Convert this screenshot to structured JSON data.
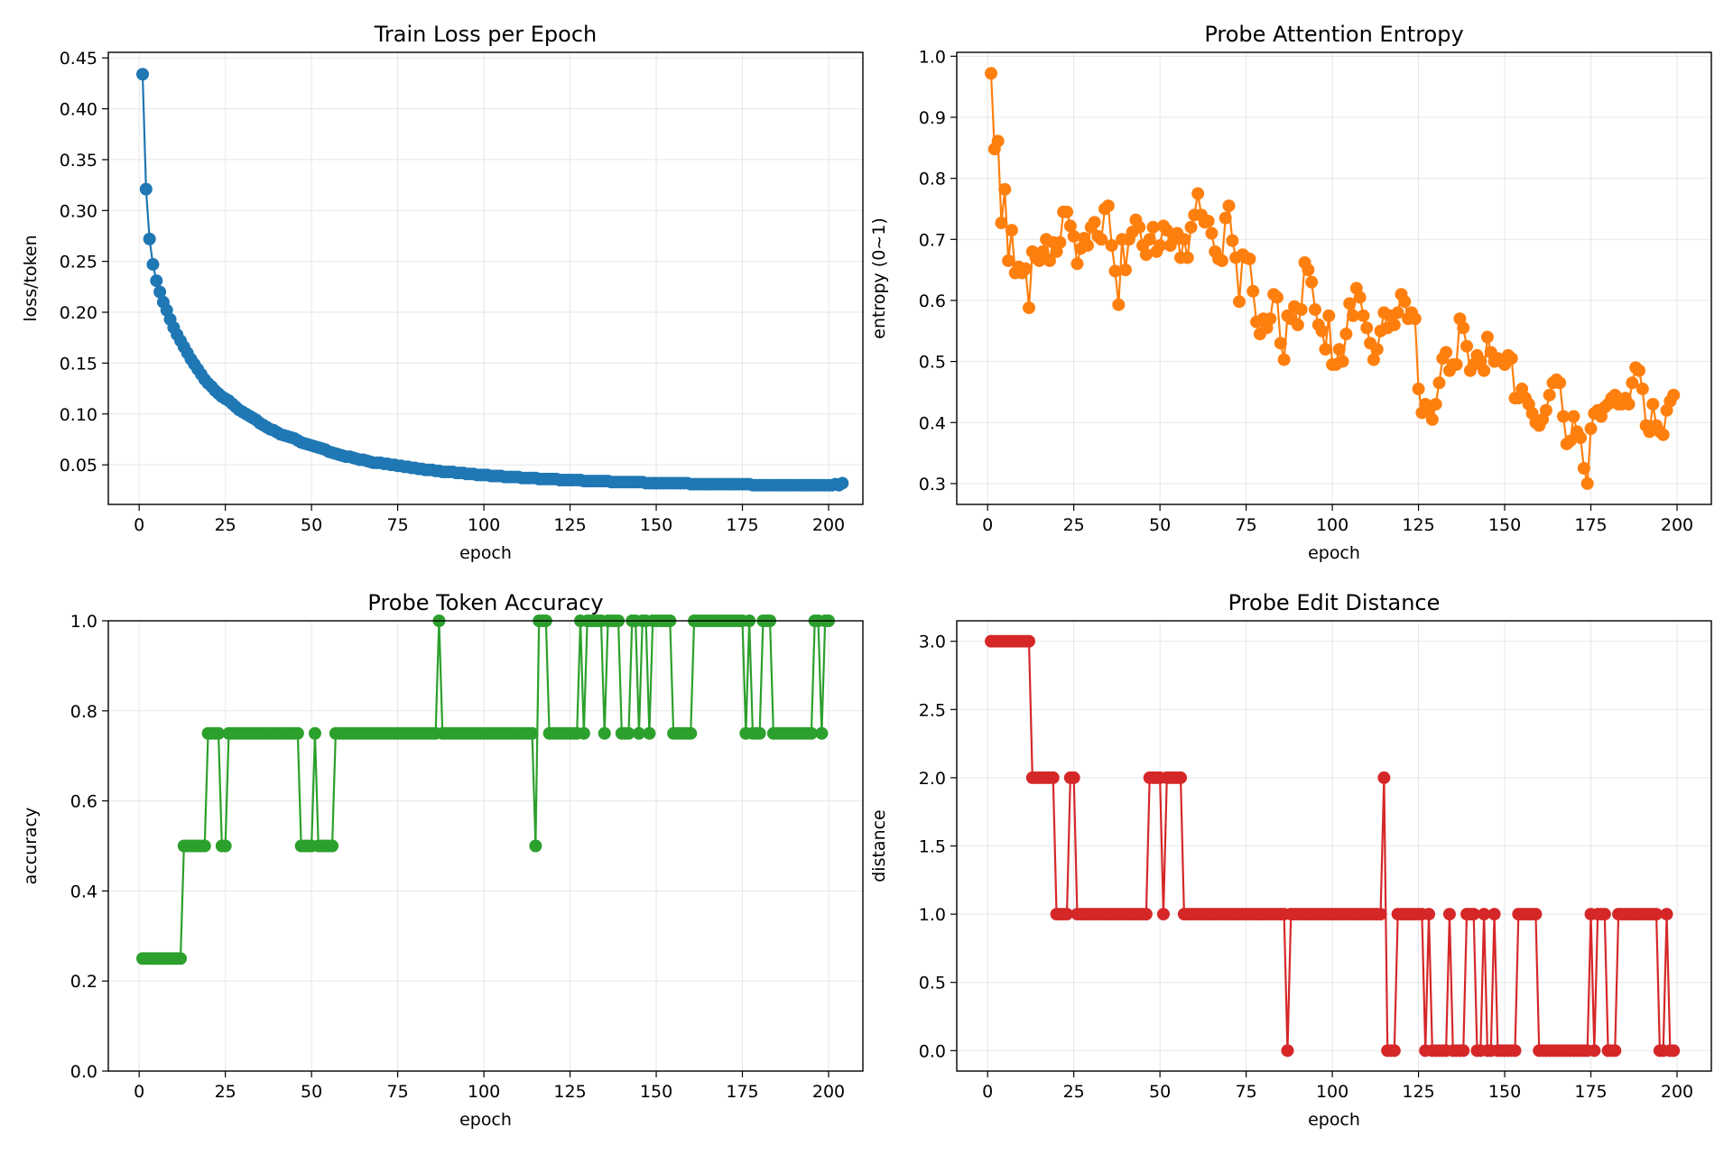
{
  "chart_data": [
    {
      "type": "line",
      "title": "Train Loss per Epoch",
      "xlabel": "epoch",
      "ylabel": "loss/token",
      "xlim": [
        -8.95,
        209.95
      ],
      "ylim": [
        0.0111,
        0.4555
      ],
      "xticks": [
        0,
        25,
        50,
        75,
        100,
        125,
        150,
        175,
        200
      ],
      "xtick_labels": [
        "0",
        "25",
        "50",
        "75",
        "100",
        "125",
        "150",
        "175",
        "200"
      ],
      "yticks": [
        0.05,
        0.1,
        0.15,
        0.2,
        0.25,
        0.3,
        0.35,
        0.4,
        0.45
      ],
      "ytick_labels": [
        "0.05",
        "0.10",
        "0.15",
        "0.20",
        "0.25",
        "0.30",
        "0.35",
        "0.40",
        "0.45"
      ],
      "grid": true,
      "color": "#1f77b4",
      "marker": "circle",
      "x_start": 1,
      "x_step": 1,
      "values": [
        0.434,
        0.321,
        0.272,
        0.247,
        0.231,
        0.22,
        0.21,
        0.202,
        0.193,
        0.185,
        0.178,
        0.172,
        0.166,
        0.16,
        0.154,
        0.149,
        0.144,
        0.139,
        0.134,
        0.13,
        0.127,
        0.123,
        0.12,
        0.117,
        0.115,
        0.113,
        0.11,
        0.107,
        0.104,
        0.102,
        0.1,
        0.098,
        0.096,
        0.094,
        0.091,
        0.089,
        0.087,
        0.085,
        0.084,
        0.082,
        0.08,
        0.079,
        0.078,
        0.077,
        0.076,
        0.074,
        0.072,
        0.071,
        0.07,
        0.069,
        0.068,
        0.067,
        0.066,
        0.065,
        0.063,
        0.062,
        0.061,
        0.06,
        0.059,
        0.058,
        0.058,
        0.057,
        0.056,
        0.055,
        0.055,
        0.054,
        0.053,
        0.052,
        0.052,
        0.052,
        0.051,
        0.051,
        0.05,
        0.05,
        0.049,
        0.049,
        0.048,
        0.048,
        0.047,
        0.047,
        0.046,
        0.046,
        0.045,
        0.045,
        0.045,
        0.044,
        0.044,
        0.043,
        0.043,
        0.043,
        0.043,
        0.042,
        0.042,
        0.042,
        0.041,
        0.041,
        0.041,
        0.04,
        0.04,
        0.04,
        0.04,
        0.039,
        0.039,
        0.039,
        0.039,
        0.038,
        0.038,
        0.038,
        0.038,
        0.038,
        0.037,
        0.037,
        0.037,
        0.037,
        0.037,
        0.036,
        0.036,
        0.036,
        0.036,
        0.036,
        0.036,
        0.035,
        0.035,
        0.035,
        0.035,
        0.035,
        0.035,
        0.035,
        0.034,
        0.034,
        0.034,
        0.034,
        0.034,
        0.034,
        0.034,
        0.034,
        0.033,
        0.033,
        0.033,
        0.033,
        0.033,
        0.033,
        0.033,
        0.033,
        0.033,
        0.033,
        0.032,
        0.032,
        0.032,
        0.032,
        0.032,
        0.032,
        0.032,
        0.032,
        0.032,
        0.032,
        0.032,
        0.032,
        0.032,
        0.031,
        0.031,
        0.031,
        0.031,
        0.031,
        0.031,
        0.031,
        0.031,
        0.031,
        0.031,
        0.031,
        0.031,
        0.031,
        0.031,
        0.031,
        0.031,
        0.031,
        0.031,
        0.03,
        0.03,
        0.03,
        0.03,
        0.03,
        0.03,
        0.03,
        0.03,
        0.03,
        0.03,
        0.03,
        0.03,
        0.03,
        0.03,
        0.03,
        0.03,
        0.03,
        0.03,
        0.03,
        0.03,
        0.03,
        0.03,
        0.03,
        0.03,
        0.031,
        0.03,
        0.032
      ]
    },
    {
      "type": "line",
      "title": "Probe Attention Entropy",
      "xlabel": "epoch",
      "ylabel": "entropy (0~1)",
      "xlim": [
        -8.95,
        209.95
      ],
      "ylim": [
        0.2659,
        1.0064
      ],
      "xticks": [
        0,
        25,
        50,
        75,
        100,
        125,
        150,
        175,
        200
      ],
      "xtick_labels": [
        "0",
        "25",
        "50",
        "75",
        "100",
        "125",
        "150",
        "175",
        "200"
      ],
      "yticks": [
        0.3,
        0.4,
        0.5,
        0.6,
        0.7,
        0.8,
        0.9,
        1.0
      ],
      "ytick_labels": [
        "0.3",
        "0.4",
        "0.5",
        "0.6",
        "0.7",
        "0.8",
        "0.9",
        "1.0"
      ],
      "grid": true,
      "color": "#ff7f0e",
      "marker": "circle",
      "x_start": 1,
      "x_step": 1,
      "values": [
        0.972,
        0.848,
        0.861,
        0.727,
        0.782,
        0.665,
        0.715,
        0.645,
        0.655,
        0.645,
        0.652,
        0.588,
        0.68,
        0.67,
        0.665,
        0.68,
        0.7,
        0.665,
        0.695,
        0.68,
        0.695,
        0.745,
        0.745,
        0.722,
        0.705,
        0.66,
        0.685,
        0.702,
        0.69,
        0.72,
        0.728,
        0.705,
        0.7,
        0.75,
        0.755,
        0.69,
        0.648,
        0.593,
        0.7,
        0.65,
        0.7,
        0.712,
        0.732,
        0.72,
        0.69,
        0.675,
        0.7,
        0.72,
        0.68,
        0.69,
        0.722,
        0.715,
        0.69,
        0.7,
        0.71,
        0.67,
        0.7,
        0.67,
        0.72,
        0.74,
        0.775,
        0.74,
        0.728,
        0.73,
        0.71,
        0.68,
        0.668,
        0.665,
        0.735,
        0.755,
        0.698,
        0.67,
        0.598,
        0.675,
        0.67,
        0.668,
        0.615,
        0.565,
        0.545,
        0.57,
        0.555,
        0.57,
        0.61,
        0.605,
        0.53,
        0.503,
        0.575,
        0.57,
        0.59,
        0.56,
        0.585,
        0.662,
        0.65,
        0.63,
        0.585,
        0.56,
        0.55,
        0.52,
        0.575,
        0.495,
        0.495,
        0.52,
        0.5,
        0.545,
        0.595,
        0.575,
        0.62,
        0.605,
        0.575,
        0.555,
        0.53,
        0.503,
        0.52,
        0.55,
        0.58,
        0.555,
        0.575,
        0.56,
        0.58,
        0.61,
        0.598,
        0.57,
        0.58,
        0.57,
        0.455,
        0.416,
        0.43,
        0.42,
        0.405,
        0.43,
        0.465,
        0.505,
        0.515,
        0.485,
        0.495,
        0.495,
        0.57,
        0.555,
        0.525,
        0.485,
        0.495,
        0.51,
        0.5,
        0.485,
        0.54,
        0.515,
        0.5,
        0.505,
        0.5,
        0.495,
        0.51,
        0.505,
        0.44,
        0.44,
        0.455,
        0.44,
        0.43,
        0.415,
        0.4,
        0.395,
        0.405,
        0.42,
        0.445,
        0.465,
        0.47,
        0.465,
        0.41,
        0.365,
        0.37,
        0.41,
        0.385,
        0.375,
        0.325,
        0.3,
        0.39,
        0.415,
        0.42,
        0.41,
        0.425,
        0.43,
        0.44,
        0.445,
        0.43,
        0.43,
        0.44,
        0.43,
        0.465,
        0.49,
        0.485,
        0.455,
        0.395,
        0.385,
        0.43,
        0.395,
        0.385,
        0.38,
        0.42,
        0.435,
        0.445
      ]
    },
    {
      "type": "line",
      "title": "Probe Token Accuracy",
      "xlabel": "epoch",
      "ylabel": "accuracy",
      "xlim": [
        -8.95,
        209.95
      ],
      "ylim": [
        0.0,
        1.0
      ],
      "xticks": [
        0,
        25,
        50,
        75,
        100,
        125,
        150,
        175,
        200
      ],
      "xtick_labels": [
        "0",
        "25",
        "50",
        "75",
        "100",
        "125",
        "150",
        "175",
        "200"
      ],
      "yticks": [
        0.0,
        0.2,
        0.4,
        0.6,
        0.8,
        1.0
      ],
      "ytick_labels": [
        "0.0",
        "0.2",
        "0.4",
        "0.6",
        "0.8",
        "1.0"
      ],
      "grid": true,
      "color": "#2ca02c",
      "marker": "circle",
      "x_start": 1,
      "x_step": 1,
      "values": [
        0.25,
        0.25,
        0.25,
        0.25,
        0.25,
        0.25,
        0.25,
        0.25,
        0.25,
        0.25,
        0.25,
        0.25,
        0.5,
        0.5,
        0.5,
        0.5,
        0.5,
        0.5,
        0.5,
        0.75,
        0.75,
        0.75,
        0.75,
        0.5,
        0.5,
        0.75,
        0.75,
        0.75,
        0.75,
        0.75,
        0.75,
        0.75,
        0.75,
        0.75,
        0.75,
        0.75,
        0.75,
        0.75,
        0.75,
        0.75,
        0.75,
        0.75,
        0.75,
        0.75,
        0.75,
        0.75,
        0.5,
        0.5,
        0.5,
        0.5,
        0.75,
        0.5,
        0.5,
        0.5,
        0.5,
        0.5,
        0.75,
        0.75,
        0.75,
        0.75,
        0.75,
        0.75,
        0.75,
        0.75,
        0.75,
        0.75,
        0.75,
        0.75,
        0.75,
        0.75,
        0.75,
        0.75,
        0.75,
        0.75,
        0.75,
        0.75,
        0.75,
        0.75,
        0.75,
        0.75,
        0.75,
        0.75,
        0.75,
        0.75,
        0.75,
        0.75,
        1.0,
        0.75,
        0.75,
        0.75,
        0.75,
        0.75,
        0.75,
        0.75,
        0.75,
        0.75,
        0.75,
        0.75,
        0.75,
        0.75,
        0.75,
        0.75,
        0.75,
        0.75,
        0.75,
        0.75,
        0.75,
        0.75,
        0.75,
        0.75,
        0.75,
        0.75,
        0.75,
        0.75,
        0.5,
        1.0,
        1.0,
        1.0,
        0.75,
        0.75,
        0.75,
        0.75,
        0.75,
        0.75,
        0.75,
        0.75,
        0.75,
        1.0,
        0.75,
        1.0,
        1.0,
        1.0,
        1.0,
        1.0,
        0.75,
        1.0,
        1.0,
        1.0,
        1.0,
        0.75,
        0.75,
        0.75,
        1.0,
        1.0,
        0.75,
        1.0,
        1.0,
        0.75,
        1.0,
        1.0,
        1.0,
        1.0,
        1.0,
        1.0,
        0.75,
        0.75,
        0.75,
        0.75,
        0.75,
        0.75,
        1.0,
        1.0,
        1.0,
        1.0,
        1.0,
        1.0,
        1.0,
        1.0,
        1.0,
        1.0,
        1.0,
        1.0,
        1.0,
        1.0,
        1.0,
        0.75,
        1.0,
        0.75,
        0.75,
        0.75,
        1.0,
        1.0,
        1.0,
        0.75,
        0.75,
        0.75,
        0.75,
        0.75,
        0.75,
        0.75,
        0.75,
        0.75,
        0.75,
        0.75,
        0.75,
        1.0,
        1.0,
        0.75,
        1.0,
        1.0
      ]
    },
    {
      "type": "line",
      "title": "Probe Edit Distance",
      "xlabel": "epoch",
      "ylabel": "distance",
      "xlim": [
        -8.95,
        209.95
      ],
      "ylim": [
        -0.15,
        3.15
      ],
      "xticks": [
        0,
        25,
        50,
        75,
        100,
        125,
        150,
        175,
        200
      ],
      "xtick_labels": [
        "0",
        "25",
        "50",
        "75",
        "100",
        "125",
        "150",
        "175",
        "200"
      ],
      "yticks": [
        0.0,
        0.5,
        1.0,
        1.5,
        2.0,
        2.5,
        3.0
      ],
      "ytick_labels": [
        "0.0",
        "0.5",
        "1.0",
        "1.5",
        "2.0",
        "2.5",
        "3.0"
      ],
      "grid": true,
      "color": "#d62728",
      "marker": "circle",
      "x_start": 1,
      "x_step": 1,
      "values": [
        3,
        3,
        3,
        3,
        3,
        3,
        3,
        3,
        3,
        3,
        3,
        3,
        2,
        2,
        2,
        2,
        2,
        2,
        2,
        1,
        1,
        1,
        1,
        2,
        2,
        1,
        1,
        1,
        1,
        1,
        1,
        1,
        1,
        1,
        1,
        1,
        1,
        1,
        1,
        1,
        1,
        1,
        1,
        1,
        1,
        1,
        2,
        2,
        2,
        2,
        1,
        2,
        2,
        2,
        2,
        2,
        1,
        1,
        1,
        1,
        1,
        1,
        1,
        1,
        1,
        1,
        1,
        1,
        1,
        1,
        1,
        1,
        1,
        1,
        1,
        1,
        1,
        1,
        1,
        1,
        1,
        1,
        1,
        1,
        1,
        1,
        0,
        1,
        1,
        1,
        1,
        1,
        1,
        1,
        1,
        1,
        1,
        1,
        1,
        1,
        1,
        1,
        1,
        1,
        1,
        1,
        1,
        1,
        1,
        1,
        1,
        1,
        1,
        1,
        2,
        0,
        0,
        0,
        1,
        1,
        1,
        1,
        1,
        1,
        1,
        1,
        0,
        1,
        0,
        0,
        0,
        0,
        0,
        1,
        0,
        0,
        0,
        0,
        1,
        1,
        1,
        0,
        0,
        1,
        0,
        0,
        1,
        0,
        0,
        0,
        0,
        0,
        0,
        1,
        1,
        1,
        1,
        1,
        1,
        0,
        0,
        0,
        0,
        0,
        0,
        0,
        0,
        0,
        0,
        0,
        0,
        0,
        0,
        0,
        1,
        0,
        1,
        1,
        1,
        0,
        0,
        0,
        1,
        1,
        1,
        1,
        1,
        1,
        1,
        1,
        1,
        1,
        1,
        1,
        0,
        0,
        1,
        0,
        0
      ]
    }
  ]
}
